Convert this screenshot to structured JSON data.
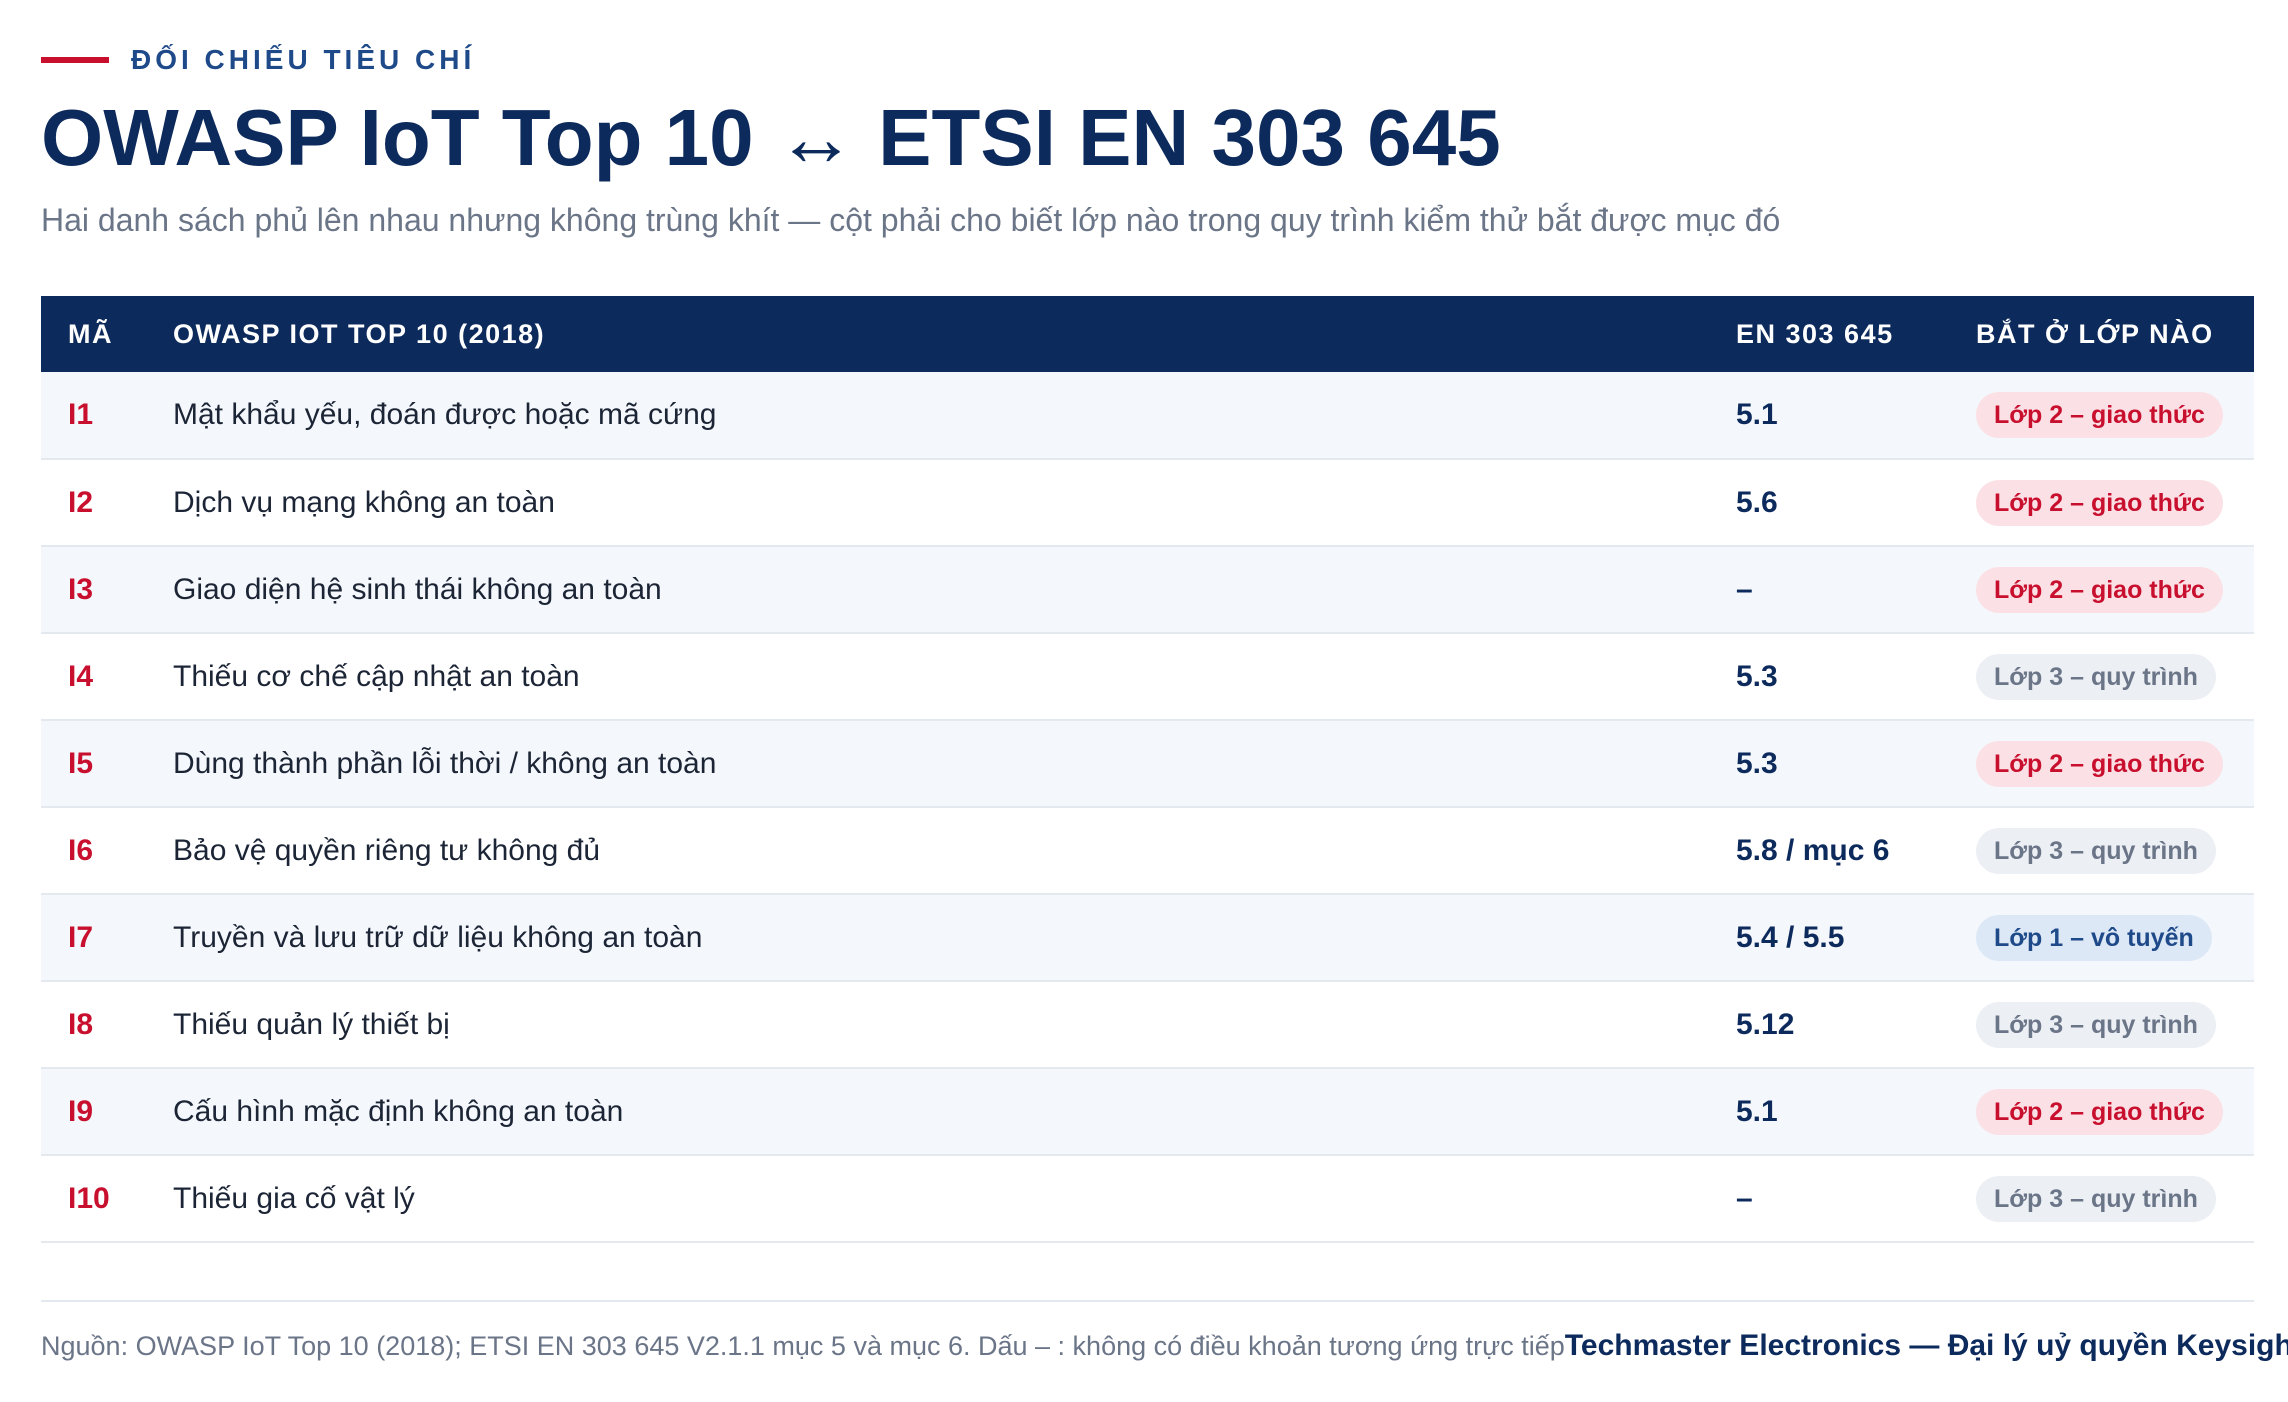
{
  "eyebrow": "ĐỐI CHIẾU TIÊU CHÍ",
  "title": "OWASP IoT Top 10 ↔ ETSI EN 303 645",
  "subtitle": "Hai danh sách phủ lên nhau nhưng không trùng khít — cột phải cho biết lớp nào trong quy trình kiểm thử bắt được mục đó",
  "table": {
    "headers": [
      "MÃ",
      "OWASP IOT TOP 10 (2018)",
      "EN 303 645",
      "BẮT Ở LỚP NÀO"
    ],
    "rows": [
      {
        "code": "I1",
        "name": "Mật khẩu yếu, đoán được hoặc mã cứng",
        "en": "5.1",
        "layer": "Lớp 2 – giao thức",
        "layer_type": "l2"
      },
      {
        "code": "I2",
        "name": "Dịch vụ mạng không an toàn",
        "en": "5.6",
        "layer": "Lớp 2 – giao thức",
        "layer_type": "l2"
      },
      {
        "code": "I3",
        "name": "Giao diện hệ sinh thái không an toàn",
        "en": "–",
        "layer": "Lớp 2 – giao thức",
        "layer_type": "l2"
      },
      {
        "code": "I4",
        "name": "Thiếu cơ chế cập nhật an toàn",
        "en": "5.3",
        "layer": "Lớp 3 – quy trình",
        "layer_type": "l3"
      },
      {
        "code": "I5",
        "name": "Dùng thành phần lỗi thời / không an toàn",
        "en": "5.3",
        "layer": "Lớp 2 – giao thức",
        "layer_type": "l2"
      },
      {
        "code": "I6",
        "name": "Bảo vệ quyền riêng tư không đủ",
        "en": "5.8 / mục 6",
        "layer": "Lớp 3 – quy trình",
        "layer_type": "l3"
      },
      {
        "code": "I7",
        "name": "Truyền và lưu trữ dữ liệu không an toàn",
        "en": "5.4 / 5.5",
        "layer": "Lớp 1 – vô tuyến",
        "layer_type": "l1"
      },
      {
        "code": "I8",
        "name": "Thiếu quản lý thiết bị",
        "en": "5.12",
        "layer": "Lớp 3 – quy trình",
        "layer_type": "l3"
      },
      {
        "code": "I9",
        "name": "Cấu hình mặc định không an toàn",
        "en": "5.1",
        "layer": "Lớp 2 – giao thức",
        "layer_type": "l2"
      },
      {
        "code": "I10",
        "name": "Thiếu gia cố vật lý",
        "en": "–",
        "layer": "Lớp 3 – quy trình",
        "layer_type": "l3"
      }
    ]
  },
  "footer": {
    "source": "Nguồn: OWASP IoT Top 10 (2018); ETSI EN 303 645 V2.1.1 mục 5 và mục 6. Dấu – : không có điều khoản tương ứng trực tiếp",
    "brand": "Techmaster Electronics — Đại lý uỷ quyền Keysight"
  },
  "colors": {
    "navy": "#0d2a5c",
    "accent_red": "#c8102e",
    "muted": "#6b7588",
    "badge_l2_bg": "#fbe1e6",
    "badge_l3_bg": "#eceff4",
    "badge_l1_bg": "#dde8f7"
  }
}
